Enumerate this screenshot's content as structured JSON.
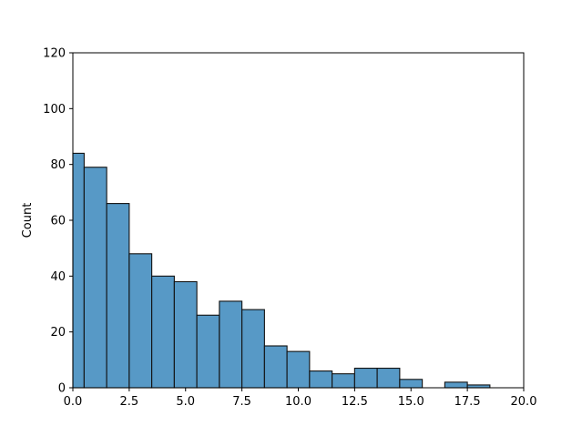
{
  "chart_data": {
    "type": "bar",
    "subtype": "histogram",
    "title": "",
    "xlabel": "",
    "ylabel": "Count",
    "xlim": [
      0,
      20
    ],
    "ylim": [
      0,
      120
    ],
    "xticks": [
      "0.0",
      "2.5",
      "5.0",
      "7.5",
      "10.0",
      "12.5",
      "15.0",
      "17.5",
      "20.0"
    ],
    "yticks": [
      "0",
      "20",
      "40",
      "60",
      "80",
      "100",
      "120"
    ],
    "grid": false,
    "legend": "none",
    "bar_color": "#5799c6",
    "edge_color": "#111111",
    "bins": [
      {
        "x0": 0.0,
        "x1": 0.5,
        "count": 84
      },
      {
        "x0": 0.5,
        "x1": 1.5,
        "count": 79
      },
      {
        "x0": 1.5,
        "x1": 2.5,
        "count": 66
      },
      {
        "x0": 2.5,
        "x1": 3.5,
        "count": 48
      },
      {
        "x0": 3.5,
        "x1": 4.5,
        "count": 40
      },
      {
        "x0": 4.5,
        "x1": 5.5,
        "count": 38
      },
      {
        "x0": 5.5,
        "x1": 6.5,
        "count": 26
      },
      {
        "x0": 6.5,
        "x1": 7.5,
        "count": 31
      },
      {
        "x0": 7.5,
        "x1": 8.5,
        "count": 28
      },
      {
        "x0": 8.5,
        "x1": 9.5,
        "count": 15
      },
      {
        "x0": 9.5,
        "x1": 10.5,
        "count": 13
      },
      {
        "x0": 10.5,
        "x1": 11.5,
        "count": 6
      },
      {
        "x0": 11.5,
        "x1": 12.5,
        "count": 5
      },
      {
        "x0": 12.5,
        "x1": 13.5,
        "count": 7
      },
      {
        "x0": 13.5,
        "x1": 14.5,
        "count": 7
      },
      {
        "x0": 14.5,
        "x1": 15.5,
        "count": 3
      },
      {
        "x0": 15.5,
        "x1": 16.5,
        "count": 0
      },
      {
        "x0": 16.5,
        "x1": 17.5,
        "count": 2
      },
      {
        "x0": 17.5,
        "x1": 18.5,
        "count": 1
      },
      {
        "x0": 18.5,
        "x1": 19.5,
        "count": 0
      }
    ]
  }
}
